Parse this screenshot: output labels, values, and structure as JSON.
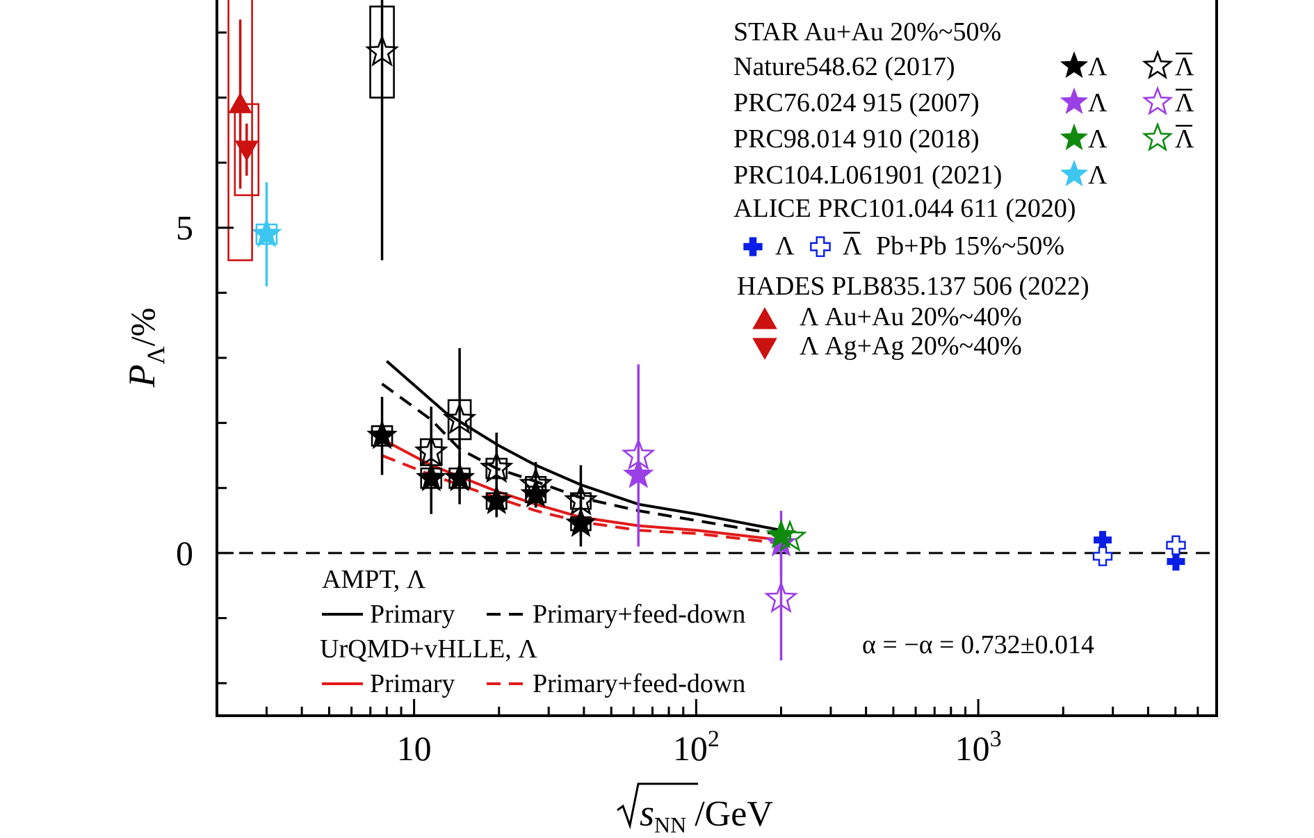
{
  "chart_data": {
    "type": "scatter",
    "xscale": "log",
    "xlim": [
      2,
      7000
    ],
    "ylim": [
      -2.5,
      8.5
    ],
    "ylabel": {
      "main": "P",
      "sub": "Λ",
      "unit": "/%"
    },
    "xlabel": {
      "var": "s",
      "sub": "NN",
      "unit": "/GeV"
    },
    "y_ticks": [
      {
        "v": 0,
        "label": "0"
      },
      {
        "v": 5,
        "label": "5"
      }
    ],
    "x_ticks": [
      {
        "v": 10,
        "label": "10"
      },
      {
        "v": 100,
        "label": "10",
        "exp": "2"
      },
      {
        "v": 1000,
        "label": "10",
        "exp": "3"
      }
    ],
    "zero_line": "dashed",
    "colors": {
      "black": "#000000",
      "purple": "#9b3fe6",
      "green": "#0f8a0f",
      "cyan": "#3cc6f0",
      "blue": "#0a1ee6",
      "red": "#cc1111"
    },
    "series": [
      {
        "name": "STAR Nature548.62 (2017) Λ",
        "marker": "star-filled",
        "color": "#000000",
        "points": [
          {
            "x": 7.7,
            "y": 1.8,
            "err": 0.6,
            "sys": 0.15
          },
          {
            "x": 11.5,
            "y": 1.15,
            "err": 0.55,
            "sys": 0.15
          },
          {
            "x": 14.5,
            "y": 1.15,
            "err": 0.4,
            "sys": 0.15
          },
          {
            "x": 19.6,
            "y": 0.8,
            "err": 0.25,
            "sys": 0.12
          },
          {
            "x": 27,
            "y": 0.9,
            "err": 0.2,
            "sys": 0.12
          },
          {
            "x": 39,
            "y": 0.45,
            "err": 0.35,
            "sys": 0.1
          }
        ]
      },
      {
        "name": "STAR Nature548.62 (2017) anti-Λ",
        "marker": "star-open",
        "color": "#000000",
        "points": [
          {
            "x": 7.7,
            "y": 7.7,
            "err": 3.2,
            "sys": 0.7
          },
          {
            "x": 11.5,
            "y": 1.55,
            "err": 0.7,
            "sys": 0.2
          },
          {
            "x": 14.5,
            "y": 2.05,
            "err": 1.1,
            "sys": 0.3
          },
          {
            "x": 19.6,
            "y": 1.3,
            "err": 0.55,
            "sys": 0.15
          },
          {
            "x": 27,
            "y": 1.05,
            "err": 0.35,
            "sys": 0.12
          },
          {
            "x": 39,
            "y": 0.8,
            "err": 0.55,
            "sys": 0.12
          }
        ]
      },
      {
        "name": "PRC76.024 915 (2007) Λ",
        "marker": "star-filled",
        "color": "#9b3fe6",
        "points": [
          {
            "x": 62.4,
            "y": 1.2,
            "err": 1.0
          },
          {
            "x": 200,
            "y": 0.15,
            "err": 0.5
          }
        ]
      },
      {
        "name": "PRC76.024 915 (2007) anti-Λ",
        "marker": "star-open",
        "color": "#9b3fe6",
        "points": [
          {
            "x": 62.4,
            "y": 1.5,
            "err": 1.4
          },
          {
            "x": 200,
            "y": -0.7,
            "err": 0.95
          }
        ]
      },
      {
        "name": "PRC98.014 910 (2018) Λ",
        "marker": "star-filled",
        "color": "#0f8a0f",
        "points": [
          {
            "x": 200,
            "y": 0.27,
            "err": 0.05
          }
        ]
      },
      {
        "name": "PRC98.014 910 (2018) anti-Λ",
        "marker": "star-open",
        "color": "#0f8a0f",
        "points": [
          {
            "x": 215,
            "y": 0.24,
            "err": 0.05
          }
        ]
      },
      {
        "name": "PRC104.L061901 (2021) Λ",
        "marker": "star-filled",
        "color": "#3cc6f0",
        "points": [
          {
            "x": 3.0,
            "y": 4.9,
            "err": 0.8,
            "sys": 0.15
          }
        ]
      },
      {
        "name": "ALICE Λ",
        "marker": "plus-filled",
        "color": "#0a1ee6",
        "points": [
          {
            "x": 2760,
            "y": 0.2,
            "err": 0.1
          },
          {
            "x": 5020,
            "y": -0.13,
            "err": 0.1
          }
        ]
      },
      {
        "name": "ALICE anti-Λ",
        "marker": "plus-open",
        "color": "#0a1ee6",
        "points": [
          {
            "x": 2760,
            "y": -0.05,
            "err": 0.1
          },
          {
            "x": 5020,
            "y": 0.12,
            "err": 0.1
          }
        ]
      },
      {
        "name": "HADES Λ Au+Au 20%~40%",
        "marker": "triangle-up",
        "color": "#cc1111",
        "points": [
          {
            "x": 2.42,
            "y": 6.9,
            "err": 1.3,
            "sys": 2.4
          }
        ]
      },
      {
        "name": "HADES Λ Ag+Ag 20%~40%",
        "marker": "triangle-down",
        "color": "#cc1111",
        "points": [
          {
            "x": 2.55,
            "y": 6.2,
            "err": 0.4,
            "sys": 0.7
          }
        ]
      }
    ],
    "curves": [
      {
        "name": "AMPT Primary",
        "color": "#000000",
        "dash": "solid",
        "x": [
          8,
          13,
          20,
          27,
          39,
          62.4,
          100,
          200
        ],
        "y": [
          2.95,
          2.15,
          1.65,
          1.35,
          1.05,
          0.75,
          0.6,
          0.35
        ]
      },
      {
        "name": "AMPT Primary+feed-down",
        "color": "#000000",
        "dash": "dashed",
        "x": [
          7.7,
          11.5,
          14.5,
          19.6,
          27,
          39,
          62.4,
          100,
          200
        ],
        "y": [
          2.6,
          2.05,
          1.6,
          1.3,
          1.1,
          0.85,
          0.65,
          0.5,
          0.28
        ]
      },
      {
        "name": "UrQMD+vHLLE Primary",
        "color": "#e21a1a",
        "dash": "solid",
        "x": [
          7.7,
          11.5,
          19.6,
          27,
          39,
          62.4,
          100,
          200
        ],
        "y": [
          1.75,
          1.35,
          0.95,
          0.75,
          0.55,
          0.42,
          0.35,
          0.2
        ]
      },
      {
        "name": "UrQMD+vHLLE Primary+feed-down",
        "color": "#e21a1a",
        "dash": "dashed",
        "x": [
          7.7,
          11.5,
          19.6,
          27,
          39,
          62.4,
          100,
          200
        ],
        "y": [
          1.5,
          1.2,
          0.85,
          0.65,
          0.48,
          0.35,
          0.3,
          0.15
        ]
      }
    ],
    "legend_top": {
      "star_title": "STAR Au+Au 20%~50%",
      "rows": [
        {
          "label": "Nature548.62 (2017)",
          "color": "#000000",
          "sym": "Λ",
          "anti": true
        },
        {
          "label": "PRC76.024 915 (2007)",
          "color": "#9b3fe6",
          "sym": "Λ",
          "anti": true
        },
        {
          "label": "PRC98.014 910 (2018)",
          "color": "#0f8a0f",
          "sym": "Λ",
          "anti": true
        },
        {
          "label": "PRC104.L061901 (2021)",
          "color": "#3cc6f0",
          "sym": "Λ",
          "anti": false
        }
      ],
      "alice_title": "ALICE PRC101.044 611 (2020)",
      "alice_lambda": "Λ",
      "alice_anti": "Λ",
      "alice_system": "Pb+Pb 15%~50%",
      "hades_title": "HADES PLB835.137 506 (2022)",
      "hades_au": "Λ Au+Au 20%~40%",
      "hades_ag": "Λ Ag+Ag 20%~40%"
    },
    "legend_bottom": {
      "ampt_title": "AMPT, Λ",
      "urqmd_title": "UrQMD+vHLLE, Λ",
      "primary": "Primary",
      "feeddown": "Primary+feed-down"
    },
    "annotation": "α = −α = 0.732±0.014"
  }
}
